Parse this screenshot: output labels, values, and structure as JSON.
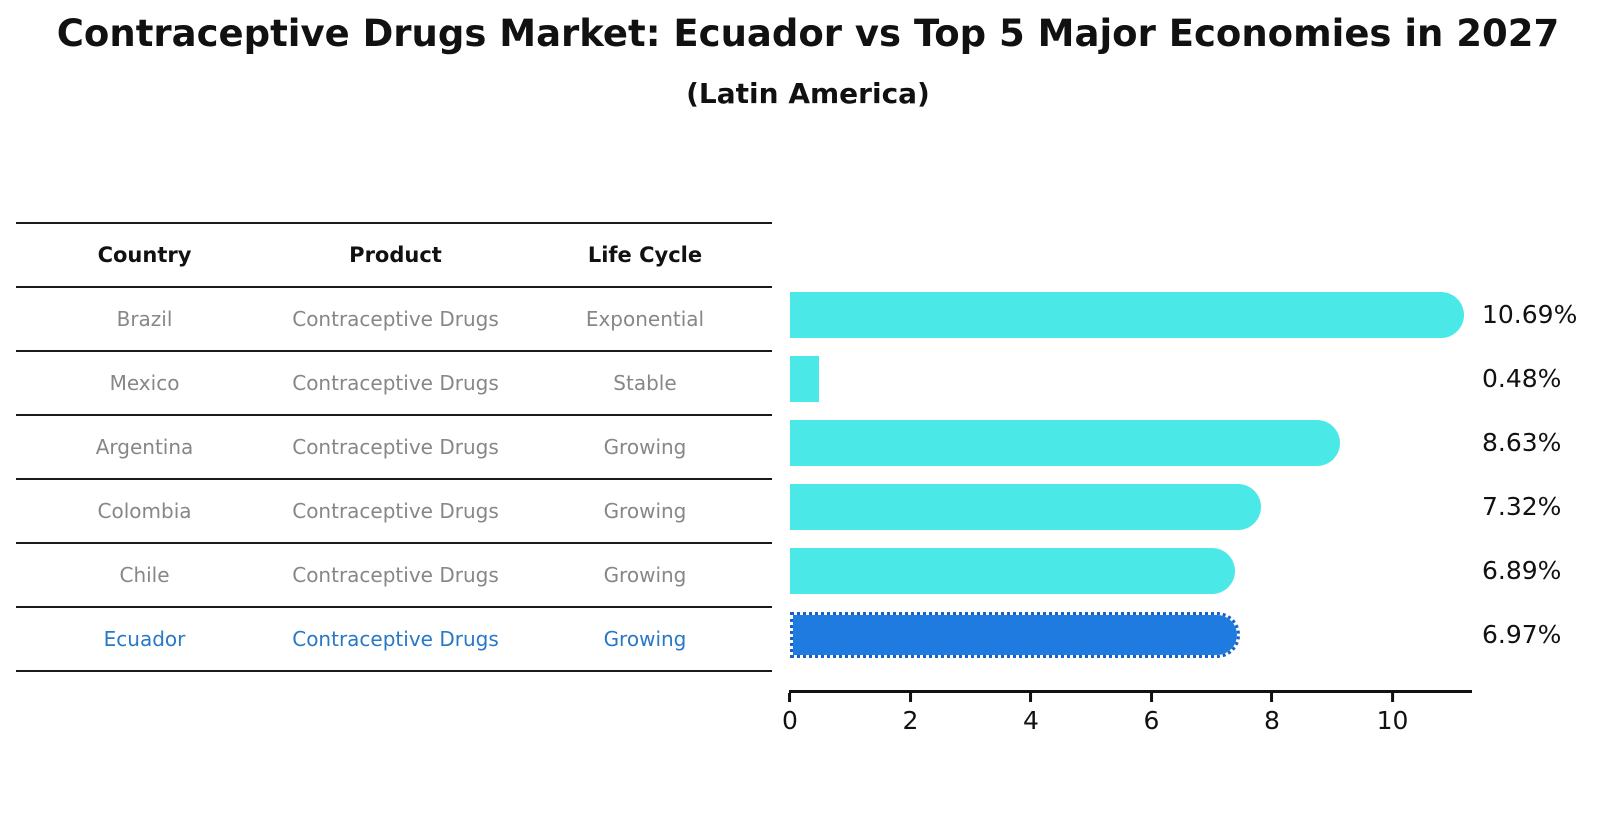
{
  "title": "Contraceptive Drugs Market: Ecuador vs Top 5 Major Economies in 2027",
  "subtitle": "(Latin America)",
  "table": {
    "headers": [
      "Country",
      "Product",
      "Life Cycle"
    ],
    "rows": [
      {
        "country": "Brazil",
        "product": "Contraceptive Drugs",
        "life_cycle": "Exponential"
      },
      {
        "country": "Mexico",
        "product": "Contraceptive Drugs",
        "life_cycle": "Stable"
      },
      {
        "country": "Argentina",
        "product": "Contraceptive Drugs",
        "life_cycle": "Growing"
      },
      {
        "country": "Colombia",
        "product": "Contraceptive Drugs",
        "life_cycle": "Growing"
      },
      {
        "country": "Chile",
        "product": "Contraceptive Drugs",
        "life_cycle": "Growing"
      },
      {
        "country": "Ecuador",
        "product": "Contraceptive Drugs",
        "life_cycle": "Growing"
      }
    ],
    "highlight_row": 5
  },
  "chart_data": {
    "type": "bar",
    "orientation": "horizontal",
    "categories": [
      "Brazil",
      "Mexico",
      "Argentina",
      "Colombia",
      "Chile",
      "Ecuador"
    ],
    "values": [
      10.69,
      0.48,
      8.63,
      7.32,
      6.89,
      6.97
    ],
    "value_labels": [
      "10.69%",
      "0.48%",
      "8.63%",
      "7.32%",
      "6.89%",
      "6.97%"
    ],
    "unit": "%",
    "xticks": [
      "0",
      "2",
      "4",
      "6",
      "8",
      "10"
    ],
    "xtick_values": [
      0,
      2,
      4,
      6,
      8,
      10
    ],
    "xlim": [
      0,
      11.27
    ],
    "grid": false,
    "legend": false,
    "bar_color": "#4BE8E8",
    "highlight_index": 5,
    "highlight_bar_color": "#1F7BE0",
    "highlight_border_color": "#1861C4",
    "highlight_border_style": "dotted"
  },
  "colors": {
    "text_dark": "#111111",
    "text_gray": "#878787",
    "highlight_text": "#2878C8",
    "bar_cyan": "#4BE8E8",
    "bar_blue": "#1F7BE0"
  }
}
